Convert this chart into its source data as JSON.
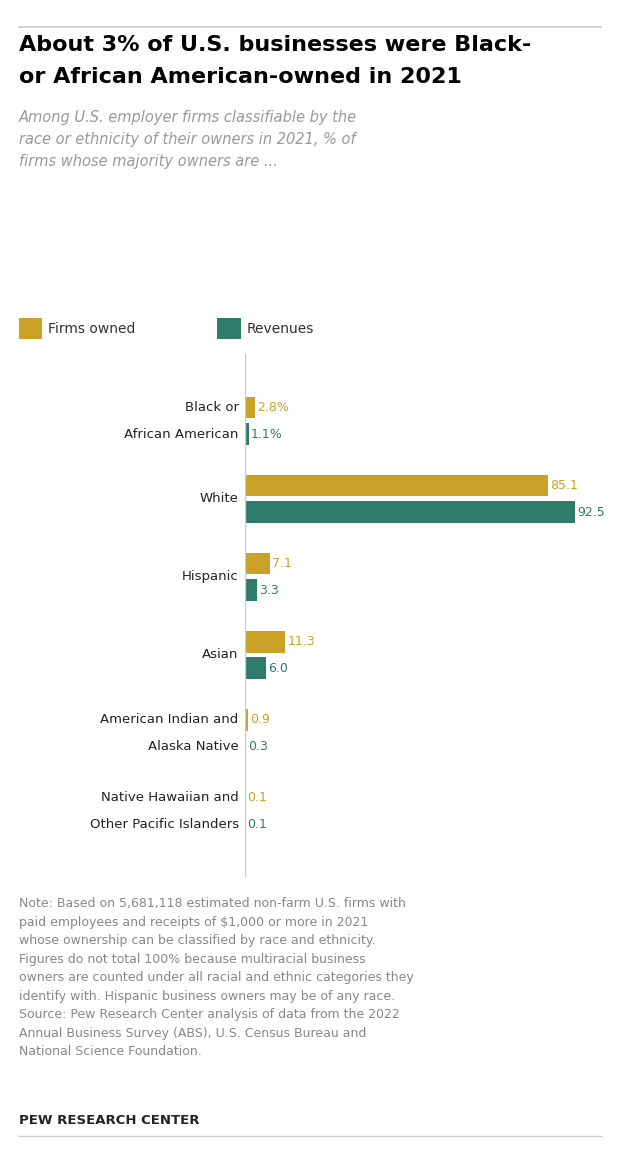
{
  "title_line1": "About 3% of U.S. businesses were Black-",
  "title_line2": "or African American-owned in 2021",
  "subtitle": "Among U.S. employer firms classifiable by the\nrace or ethnicity of their owners in 2021, % of\nfirms whose majority owners are ...",
  "categories": [
    [
      "Black or",
      "African American"
    ],
    [
      "White"
    ],
    [
      "Hispanic"
    ],
    [
      "Asian"
    ],
    [
      "American Indian and",
      "Alaska Native"
    ],
    [
      "Native Hawaiian and",
      "Other Pacific Islanders"
    ]
  ],
  "firms_owned": [
    2.8,
    85.1,
    7.1,
    11.3,
    0.9,
    0.1
  ],
  "revenues": [
    1.1,
    92.5,
    3.3,
    6.0,
    0.3,
    0.1
  ],
  "firms_color": "#C9A227",
  "revenues_color": "#2E7D6B",
  "legend_firms": "Firms owned",
  "legend_revenues": "Revenues",
  "value_labels": [
    [
      "2.8%",
      "1.1%"
    ],
    [
      "85.1",
      "92.5"
    ],
    [
      "7.1",
      "3.3"
    ],
    [
      "11.3",
      "6.0"
    ],
    [
      "0.9",
      "0.3"
    ],
    [
      "0.1",
      "0.1"
    ]
  ],
  "note_line1": "Note: Based on 5,681,118 estimated non-farm U.S. firms with",
  "note_line2": "paid employees and receipts of $1,000 or more in 2021",
  "note_line3": "whose ownership can be classified by race and ethnicity.",
  "note_line4": "Figures do not total 100% because multiracial business",
  "note_line5": "owners are counted under all racial and ethnic categories they",
  "note_line6": "identify with. Hispanic business owners may be of any race.",
  "note_line7": "Source: Pew Research Center analysis of data from the 2022",
  "note_line8": "Annual Business Survey (ABS), U.S. Census Bureau and",
  "note_line9": "National Science Foundation.",
  "footer": "PEW RESEARCH CENTER",
  "background_color": "#ffffff",
  "title_color": "#000000",
  "subtitle_color": "#999999",
  "note_color": "#888888",
  "separator_color": "#cccccc"
}
